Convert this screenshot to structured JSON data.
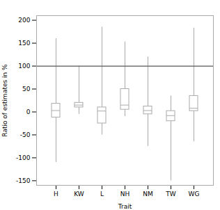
{
  "chart_data": {
    "type": "box",
    "xlabel": "Trait",
    "ylabel": "Ratio of estimates in %",
    "categories": [
      "H",
      "KW",
      "L",
      "NH",
      "NM",
      "TW",
      "WG"
    ],
    "boxes": [
      {
        "whisker_low": -110,
        "q1": -12,
        "median": 3,
        "q3": 18,
        "whisker_high": 160
      },
      {
        "whisker_low": -5,
        "q1": 10,
        "median": 15,
        "q3": 20,
        "whisker_high": 100
      },
      {
        "whisker_low": -50,
        "q1": -25,
        "median": 2,
        "q3": 10,
        "whisker_high": 185
      },
      {
        "whisker_low": -10,
        "q1": 5,
        "median": 15,
        "q3": 50,
        "whisker_high": 153
      },
      {
        "whisker_low": -75,
        "q1": -5,
        "median": 3,
        "q3": 12,
        "whisker_high": 120
      },
      {
        "whisker_low": -150,
        "q1": -20,
        "median": -8,
        "q3": 2,
        "whisker_high": 35
      },
      {
        "whisker_low": -65,
        "q1": 2,
        "median": 8,
        "q3": 35,
        "whisker_high": 183
      }
    ],
    "color": "#aaaaaa",
    "hline": {
      "y": 100,
      "color": "#555555"
    },
    "ylim": [
      -160,
      210
    ],
    "yticks": [
      -150,
      -100,
      -50,
      0,
      50,
      100,
      150,
      200
    ]
  }
}
